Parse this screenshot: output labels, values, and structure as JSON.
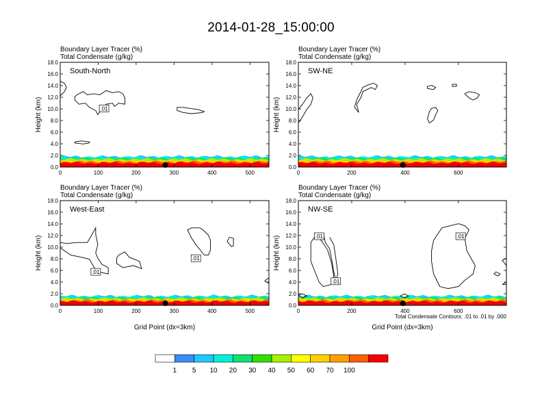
{
  "figure": {
    "title": "2014-01-28_15:00:00"
  },
  "chart_data": [
    {
      "type": "contour",
      "name": "South-North",
      "title_line1": "Boundary Layer Tracer   (%)",
      "title_line2": "Total Condensate   (g/kg)",
      "xlim": [
        0,
        550
      ],
      "xticks": [
        0,
        100,
        200,
        300,
        400,
        500
      ],
      "ylim": [
        0,
        18
      ],
      "yticks": [
        "0.0",
        "2.0",
        "4.0",
        "6.0",
        "8.0",
        "10.0",
        "12.0",
        "14.0",
        "16.0",
        "18.0"
      ],
      "ylabel": "Height (km)",
      "xlabel": "",
      "boundary_layer_top_km": 1.8,
      "marker_x": 277,
      "contour_labels": [
        ".01"
      ],
      "contour_level_g_per_kg": 0.01
    },
    {
      "type": "contour",
      "name": "SW-NE",
      "title_line1": "Boundary Layer Tracer   (%)",
      "title_line2": "Total Condensate   (g/kg)",
      "xlim": [
        0,
        780
      ],
      "xticks": [
        0,
        200,
        400,
        600
      ],
      "ylim": [
        0,
        18
      ],
      "yticks": [
        "0.0",
        "2.0",
        "4.0",
        "6.0",
        "8.0",
        "10.0",
        "12.0",
        "14.0",
        "16.0",
        "18.0"
      ],
      "ylabel": "Height (km)",
      "xlabel": "",
      "boundary_layer_top_km": 1.8,
      "marker_x": 392,
      "contour_labels": [],
      "contour_level_g_per_kg": 0.01
    },
    {
      "type": "contour",
      "name": "West-East",
      "title_line1": "Boundary Layer Tracer   (%)",
      "title_line2": "Total Condensate   (g/kg)",
      "xlim": [
        0,
        550
      ],
      "xticks": [
        0,
        100,
        200,
        300,
        400,
        500
      ],
      "ylim": [
        0,
        18
      ],
      "yticks": [
        "0.0",
        "2.0",
        "4.0",
        "6.0",
        "8.0",
        "10.0",
        "12.0",
        "14.0",
        "16.0",
        "18.0"
      ],
      "ylabel": "Height (km)",
      "xlabel": "Grid Point (dx=3km)",
      "boundary_layer_top_km": 1.6,
      "marker_x": 277,
      "contour_labels": [
        ".01",
        ".01"
      ],
      "contour_level_g_per_kg": 0.01
    },
    {
      "type": "contour",
      "name": "NW-SE",
      "title_line1": "Boundary Layer Tracer   (%)",
      "title_line2": "Total Condensate   (g/kg)",
      "xlim": [
        0,
        780
      ],
      "xticks": [
        0,
        200,
        400,
        600
      ],
      "ylim": [
        0,
        18
      ],
      "yticks": [
        "0.0",
        "2.0",
        "4.0",
        "6.0",
        "8.0",
        "10.0",
        "12.0",
        "14.0",
        "16.0",
        "18.0"
      ],
      "ylabel": "Height (km)",
      "xlabel": "Grid Point (dx=3km)",
      "boundary_layer_top_km": 1.6,
      "marker_x": 392,
      "contour_labels": [
        ".01",
        ".01",
        ".01"
      ],
      "contour_level_g_per_kg": 0.01,
      "note": "Total Condensate Contours: .01 to .01 by .000"
    }
  ],
  "colorbar": {
    "levels": [
      "1",
      "5",
      "10",
      "20",
      "30",
      "40",
      "50",
      "60",
      "70",
      "100"
    ],
    "colors": [
      "#ffffff",
      "#3c8cf5",
      "#20c8ff",
      "#00f0d8",
      "#10e070",
      "#30e000",
      "#a8f000",
      "#ffff00",
      "#ffd000",
      "#ffa000",
      "#ff6000",
      "#f80000"
    ]
  }
}
